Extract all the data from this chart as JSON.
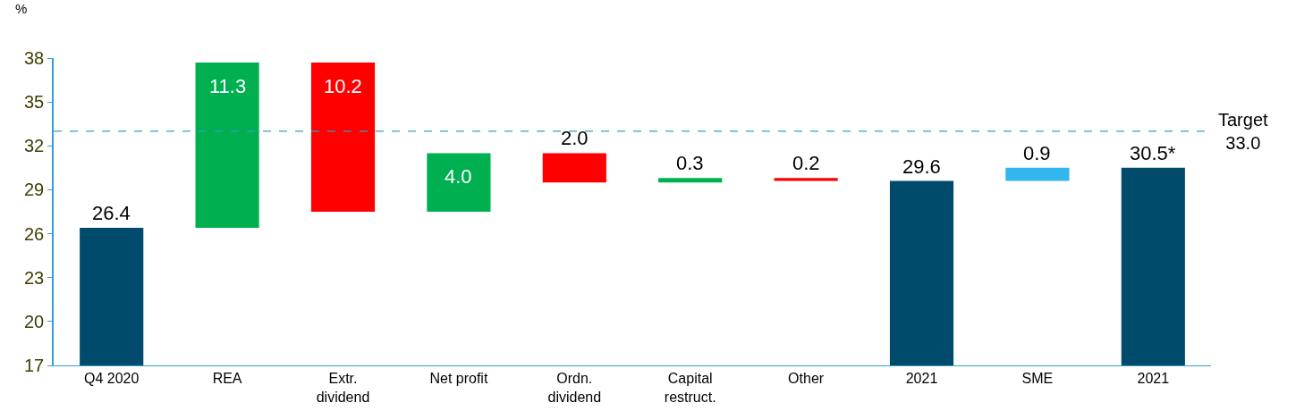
{
  "chart_data": {
    "type": "bar",
    "ylabel": "%",
    "categories": [
      "Q4 2020",
      "REA",
      "Extr.\ndividend",
      "Net profit",
      "Ordn.\ndividend",
      "Capital\nrestruct.",
      "Other",
      "2021",
      "SME",
      "2021"
    ],
    "values": [
      9.4,
      11.3,
      -10.2,
      4.0,
      -2.0,
      0.3,
      -0.2,
      12.6,
      0.9,
      13.5
    ],
    "base": [
      17,
      26.4,
      37.7,
      27.5,
      31.5,
      29.5,
      29.8,
      17,
      29.6,
      17
    ],
    "colors": [
      "#004b6b",
      "#00b050",
      "#ff0000",
      "#00b050",
      "#ff0000",
      "#00b050",
      "#ff0000",
      "#004b6b",
      "#33b5f0",
      "#004b6b"
    ],
    "value_labels": [
      "26.4",
      "11.3",
      "10.2",
      "4.0",
      "2.0",
      "0.3",
      "0.2",
      "29.6",
      "0.9",
      "30.5*"
    ],
    "ylim": [
      17,
      38
    ],
    "yticks": [
      17,
      20,
      23,
      26,
      29,
      32,
      35,
      38
    ],
    "ref_lines": [
      {
        "axis": "y",
        "value": 33.0,
        "label": "Target\n33.0",
        "color": "#33a0d0",
        "line_style": "dashed"
      }
    ],
    "legend": false
  }
}
